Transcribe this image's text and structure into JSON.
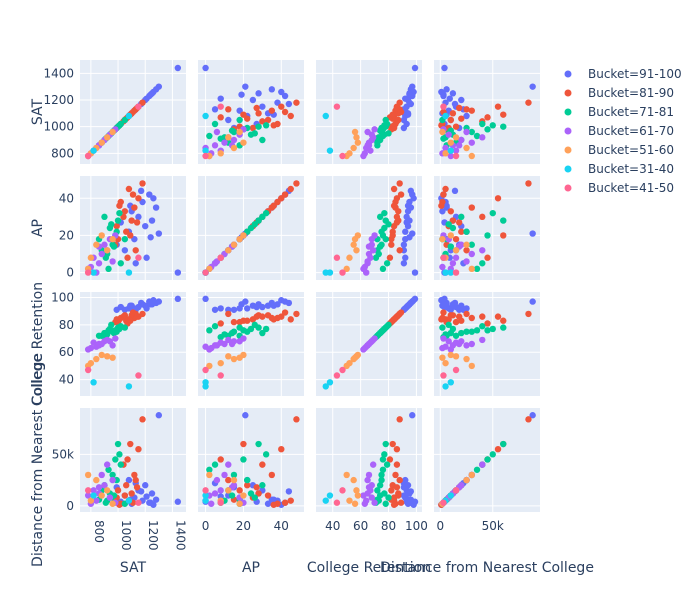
{
  "chart_data": {
    "type": "scatter",
    "subtype": "scatter-matrix",
    "dimensions": [
      "SAT",
      "AP",
      "College Retention",
      "Distance from Nearest College"
    ],
    "ranges": {
      "SAT": [
        720,
        1500
      ],
      "AP": [
        -4,
        52
      ],
      "College Retention": [
        28,
        104
      ],
      "Distance from Nearest College": [
        -6000,
        95000
      ]
    },
    "ticks": {
      "SAT": [
        {
          "v": 800,
          "label": "800"
        },
        {
          "v": 1000,
          "label": "1000"
        },
        {
          "v": 1200,
          "label": "1200"
        },
        {
          "v": 1400,
          "label": "1400"
        }
      ],
      "AP": [
        {
          "v": 0,
          "label": "0"
        },
        {
          "v": 20,
          "label": "20"
        },
        {
          "v": 40,
          "label": "40"
        }
      ],
      "College Retention": [
        {
          "v": 40,
          "label": "40"
        },
        {
          "v": 60,
          "label": "60"
        },
        {
          "v": 80,
          "label": "80"
        },
        {
          "v": 100,
          "label": "100"
        }
      ],
      "Distance from Nearest College": [
        {
          "v": 0,
          "label": "0"
        },
        {
          "v": 50000,
          "label": "50k"
        }
      ]
    },
    "grid": true,
    "legend_position": "top-right",
    "series": [
      {
        "name": "Bucket=91-100",
        "color": "#636efa",
        "points": [
          [
            1440,
            0,
            99,
            4000
          ],
          [
            1300,
            21,
            97,
            88000
          ],
          [
            1280,
            35,
            96,
            6000
          ],
          [
            1250,
            28,
            95,
            12000
          ],
          [
            1230,
            42,
            97,
            3000
          ],
          [
            1200,
            25,
            94,
            20000
          ],
          [
            1180,
            38,
            95,
            5000
          ],
          [
            1150,
            30,
            93,
            15000
          ],
          [
            1120,
            18,
            92,
            8000
          ],
          [
            1100,
            33,
            94,
            2000
          ],
          [
            1080,
            22,
            92,
            25000
          ],
          [
            1050,
            12,
            91,
            10000
          ],
          [
            1020,
            27,
            93,
            4000
          ],
          [
            990,
            15,
            91,
            18000
          ],
          [
            1260,
            40,
            98,
            1000
          ],
          [
            1210,
            8,
            92,
            9000
          ],
          [
            1170,
            44,
            96,
            14000
          ],
          [
            1130,
            5,
            91,
            22000
          ],
          [
            1090,
            36,
            94,
            6000
          ],
          [
            1240,
            19,
            95,
            3000
          ]
        ]
      },
      {
        "name": "Bucket=81-90",
        "color": "#ef553b",
        "points": [
          [
            1180,
            48,
            88,
            84000
          ],
          [
            1150,
            40,
            86,
            55000
          ],
          [
            1120,
            35,
            85,
            30000
          ],
          [
            1100,
            28,
            87,
            12000
          ],
          [
            1080,
            45,
            84,
            5000
          ],
          [
            1060,
            22,
            83,
            20000
          ],
          [
            1040,
            30,
            86,
            40000
          ],
          [
            1020,
            38,
            85,
            2000
          ],
          [
            1000,
            18,
            82,
            15000
          ],
          [
            990,
            25,
            84,
            8000
          ],
          [
            1130,
            12,
            88,
            25000
          ],
          [
            1110,
            42,
            89,
            3000
          ],
          [
            1070,
            8,
            81,
            45000
          ],
          [
            1050,
            33,
            87,
            10000
          ],
          [
            1090,
            20,
            83,
            60000
          ],
          [
            980,
            15,
            82,
            6000
          ],
          [
            1140,
            27,
            86,
            18000
          ],
          [
            1010,
            36,
            84,
            1000
          ]
        ]
      },
      {
        "name": "Bucket=71-81",
        "color": "#00cc96",
        "points": [
          [
            1000,
            28,
            78,
            60000
          ],
          [
            980,
            20,
            76,
            45000
          ],
          [
            960,
            15,
            75,
            30000
          ],
          [
            940,
            24,
            77,
            12000
          ],
          [
            920,
            10,
            73,
            5000
          ],
          [
            900,
            30,
            74,
            20000
          ],
          [
            1020,
            5,
            79,
            40000
          ],
          [
            1050,
            18,
            78,
            2000
          ],
          [
            880,
            12,
            72,
            15000
          ],
          [
            950,
            26,
            80,
            8000
          ],
          [
            990,
            22,
            75,
            25000
          ],
          [
            910,
            8,
            71,
            3000
          ],
          [
            1010,
            32,
            77,
            50000
          ],
          [
            970,
            14,
            74,
            10000
          ],
          [
            930,
            2,
            76,
            35000
          ],
          [
            860,
            18,
            72,
            6000
          ]
        ]
      },
      {
        "name": "Bucket=61-70",
        "color": "#ab63fa",
        "points": [
          [
            900,
            15,
            68,
            20000
          ],
          [
            880,
            10,
            66,
            30000
          ],
          [
            860,
            5,
            65,
            12000
          ],
          [
            840,
            0,
            64,
            5000
          ],
          [
            820,
            8,
            67,
            15000
          ],
          [
            800,
            3,
            63,
            2000
          ],
          [
            920,
            12,
            69,
            40000
          ],
          [
            940,
            18,
            68,
            8000
          ],
          [
            960,
            6,
            65,
            25000
          ],
          [
            780,
            2,
            62,
            10000
          ],
          [
            980,
            20,
            70,
            3000
          ],
          [
            860,
            14,
            66,
            18000
          ]
        ]
      },
      {
        "name": "Bucket=51-60",
        "color": "#ffa15a",
        "points": [
          [
            880,
            20,
            58,
            10000
          ],
          [
            840,
            15,
            55,
            25000
          ],
          [
            800,
            8,
            52,
            5000
          ],
          [
            780,
            2,
            50,
            30000
          ],
          [
            920,
            12,
            57,
            15000
          ],
          [
            960,
            18,
            56,
            2000
          ]
        ]
      },
      {
        "name": "Bucket=31-40",
        "color": "#19d3f3",
        "points": [
          [
            820,
            0,
            38,
            10000
          ],
          [
            1080,
            0,
            35,
            5000
          ]
        ]
      },
      {
        "name": "Bucket=41-50",
        "color": "#ff6692",
        "points": [
          [
            1150,
            8,
            43,
            3000
          ],
          [
            780,
            0,
            47,
            15000
          ]
        ]
      }
    ]
  }
}
